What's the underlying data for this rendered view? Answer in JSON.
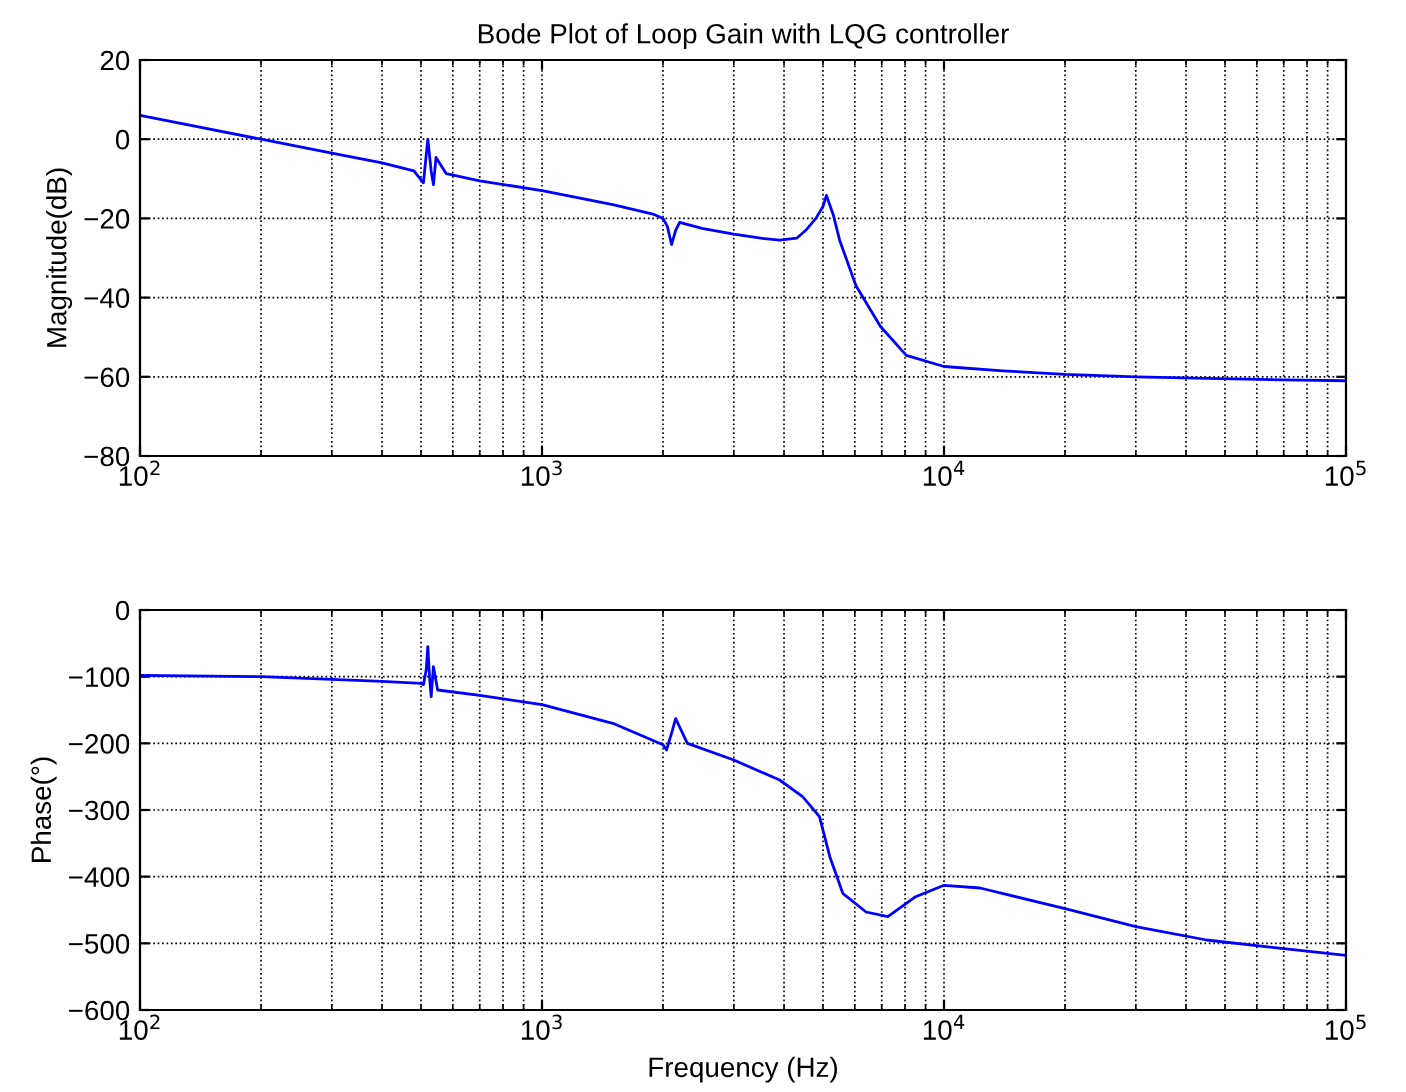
{
  "chart_data": [
    {
      "type": "line",
      "title": "Bode Plot of Loop Gain with LQG controller",
      "ylabel": "Magnitude(dB)",
      "series": [
        {
          "color": "#0000ff",
          "x": [
            100,
            200,
            300,
            400,
            480,
            507,
            520,
            530,
            537,
            545,
            578,
            700,
            1000,
            1500,
            1900,
            2000,
            2050,
            2100,
            2150,
            2200,
            2500,
            3000,
            3500,
            3900,
            4300,
            4530,
            4800,
            5000,
            5100,
            5300,
            5500,
            6040,
            6950,
            8060,
            10000,
            14000,
            20000,
            30000,
            45000,
            70000,
            100000
          ],
          "values": [
            6,
            0,
            -3.5,
            -6,
            -8,
            -11,
            0,
            -8,
            -11.5,
            -4.6,
            -8.7,
            -10.5,
            -13,
            -16.5,
            -19,
            -20,
            -22,
            -26.6,
            -23,
            -21,
            -22.5,
            -24,
            -25,
            -25.5,
            -25,
            -23,
            -20,
            -17,
            -14.2,
            -19,
            -25.5,
            -37,
            -47.3,
            -54.6,
            -57.4,
            -58.5,
            -59.4,
            -60,
            -60.4,
            -60.8,
            -61
          ]
        }
      ],
      "xlim": [
        100,
        100000
      ],
      "ylim": [
        -80,
        20
      ],
      "log": "x",
      "grid": true,
      "xticks": [
        {
          "value": 100,
          "label": "10$^{2}$"
        },
        {
          "value": 1000,
          "label": "10$^{3}$"
        },
        {
          "value": 10000,
          "label": "10$^{4}$"
        },
        {
          "value": 100000,
          "label": "10$^{5}$"
        }
      ],
      "yticks": [
        -80,
        -60,
        -40,
        -20,
        0,
        20
      ]
    },
    {
      "type": "line",
      "xlabel": "Frequency (Hz)",
      "ylabel": "Phase(°)",
      "series": [
        {
          "color": "#0000ff",
          "x": [
            100,
            200,
            300,
            400,
            500,
            507,
            515,
            520,
            525,
            530,
            537,
            550,
            700,
            1000,
            1500,
            2000,
            2040,
            2100,
            2150,
            2300,
            3000,
            3900,
            4450,
            4900,
            5200,
            5600,
            6400,
            7250,
            8500,
            10000,
            12300,
            20000,
            30000,
            45000,
            70000,
            100000
          ],
          "values": [
            -98,
            -100,
            -104,
            -107,
            -110,
            -112,
            -90,
            -55,
            -100,
            -130,
            -85,
            -120,
            -128,
            -142,
            -170,
            -202,
            -210,
            -185,
            -163,
            -200,
            -225,
            -255,
            -280,
            -310,
            -370,
            -425,
            -453,
            -460,
            -430,
            -413,
            -417,
            -448,
            -475,
            -495,
            -508,
            -518
          ]
        }
      ],
      "xlim": [
        100,
        100000
      ],
      "ylim": [
        -600,
        0
      ],
      "log": "x",
      "grid": true,
      "xticks": [
        {
          "value": 100,
          "label": "10$^{2}$"
        },
        {
          "value": 1000,
          "label": "10$^{3}$"
        },
        {
          "value": 10000,
          "label": "10$^{4}$"
        },
        {
          "value": 100000,
          "label": "10$^{5}$"
        }
      ],
      "yticks": [
        -600,
        -500,
        -400,
        -300,
        -200,
        -100,
        0
      ]
    }
  ]
}
